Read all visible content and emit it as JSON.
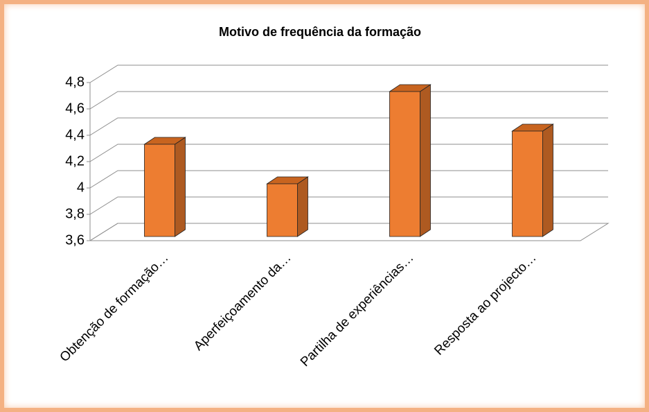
{
  "chart_data": {
    "type": "bar",
    "title": "Motivo de frequência da formação",
    "categories": [
      "Obtenção de formação…",
      "Aperfeiçoamento da…",
      "Partilha de experiências…",
      "Resposta ao projecto…"
    ],
    "values": [
      4.3,
      4.0,
      4.7,
      4.4
    ],
    "color": "#ed7d31",
    "ylim": [
      3.6,
      4.8
    ],
    "yticks": [
      {
        "value": 3.6,
        "label": "3,6"
      },
      {
        "value": 3.8,
        "label": "3,8"
      },
      4,
      {
        "value": 4.2,
        "label": "4,2"
      },
      {
        "value": 4.4,
        "label": "4,4"
      },
      {
        "value": 4.6,
        "label": "4,6"
      },
      {
        "value": 4.8,
        "label": "4,8"
      }
    ],
    "grid": true
  }
}
